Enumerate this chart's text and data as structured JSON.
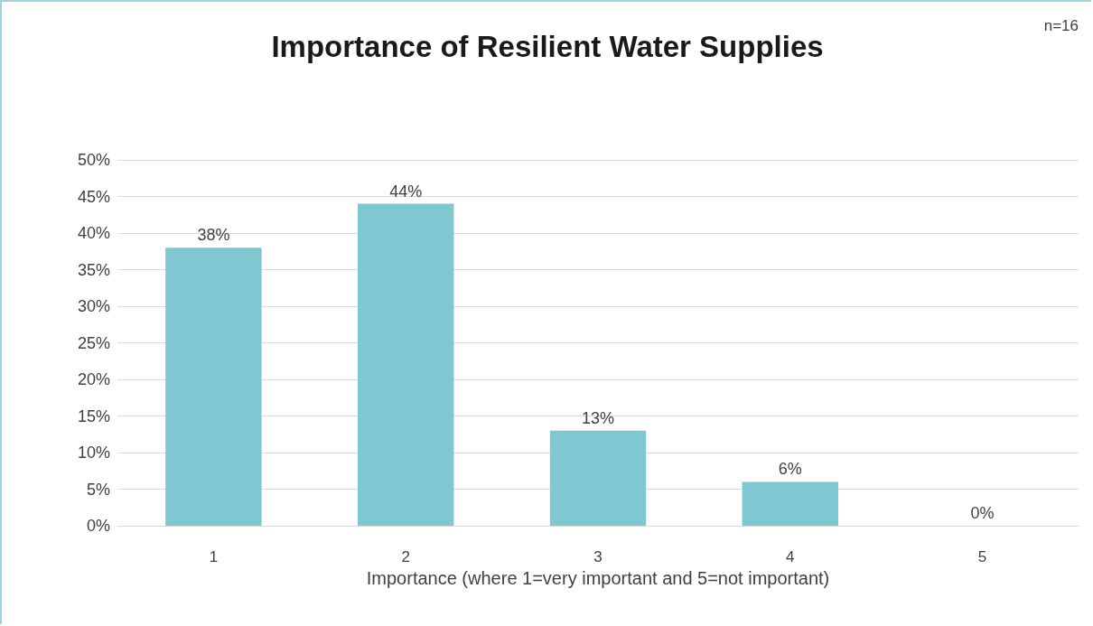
{
  "chart_data": {
    "type": "bar",
    "title": "Importance of Resilient Water Supplies",
    "xlabel": "Importance (where 1=very important and 5=not important)",
    "annotations": [
      "n=16"
    ],
    "categories": [
      "1",
      "2",
      "3",
      "4",
      "5"
    ],
    "values": [
      38,
      44,
      13,
      6,
      0
    ],
    "value_labels": [
      "38%",
      "44%",
      "13%",
      "6%",
      "0%"
    ],
    "color": "#7fc8d1",
    "ylim": [
      0,
      50
    ],
    "yticks": [
      {
        "value": 0,
        "label": "0%"
      },
      {
        "value": 5,
        "label": "5%"
      },
      {
        "value": 10,
        "label": "10%"
      },
      {
        "value": 15,
        "label": "15%"
      },
      {
        "value": 20,
        "label": "20%"
      },
      {
        "value": 25,
        "label": "25%"
      },
      {
        "value": 30,
        "label": "30%"
      },
      {
        "value": 35,
        "label": "35%"
      },
      {
        "value": 40,
        "label": "40%"
      },
      {
        "value": 45,
        "label": "45%"
      },
      {
        "value": 50,
        "label": "50%"
      }
    ],
    "grid": "y"
  }
}
